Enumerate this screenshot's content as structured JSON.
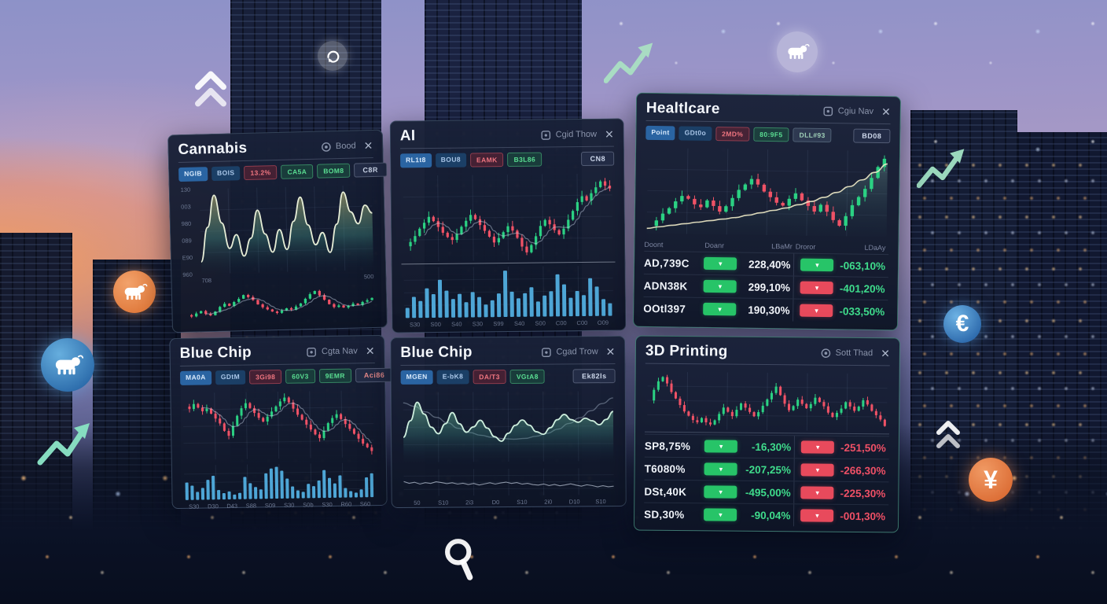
{
  "ui": {
    "close_glyph": "✕",
    "badge_glyph": "▾"
  },
  "icons": {
    "euro": "€",
    "yen": "¥"
  },
  "panels": {
    "cannabis": {
      "title": "Cannabis",
      "header_label": "Bood",
      "corner_button": "C8R",
      "tags": [
        {
          "label": "NGIB",
          "style": "blue"
        },
        {
          "label": "BOIS",
          "style": "blue2"
        },
        {
          "label": "13.2%",
          "style": "red"
        },
        {
          "label": "CA5A",
          "style": "green"
        },
        {
          "label": "BOM8",
          "style": "green"
        }
      ],
      "main_chart": {
        "type": "area",
        "values": [
          12,
          55,
          95,
          60,
          28,
          45,
          18,
          40,
          75,
          45,
          22,
          50,
          25,
          60,
          90,
          55,
          30,
          45,
          20,
          55,
          95,
          70,
          55,
          78,
          68
        ],
        "y_labels": [
          "130",
          "003",
          "980",
          "089",
          "E90",
          "960"
        ],
        "x_labels": [
          "708",
          "500"
        ],
        "fill_top": "rgba(186,176,110,0.60)",
        "fill_mid": "rgba(70,150,135,0.38)",
        "line_color": "#e6edd6"
      },
      "sub_chart": {
        "type": "candles",
        "closes": [
          30,
          28,
          32,
          35,
          31,
          29,
          34,
          40,
          44,
          41,
          46,
          50,
          55,
          52,
          48,
          42,
          38,
          35,
          32,
          30,
          33,
          36,
          34,
          38,
          42,
          48,
          54,
          58,
          52,
          46,
          40,
          36,
          38,
          35,
          37,
          40,
          38,
          42,
          44,
          47
        ],
        "ma": true,
        "grid": false
      }
    },
    "ai": {
      "title": "AI",
      "header_label": "Cgid Thow",
      "corner_button": "CN8",
      "tags": [
        {
          "label": "RL1t8",
          "style": "blue"
        },
        {
          "label": "BOU8",
          "style": "blue2"
        },
        {
          "label": "EAMK",
          "style": "red"
        },
        {
          "label": "B3L86",
          "style": "green"
        }
      ],
      "main_chart": {
        "type": "candles",
        "closes": [
          40,
          43,
          47,
          52,
          56,
          60,
          57,
          53,
          49,
          46,
          44,
          48,
          53,
          57,
          61,
          58,
          54,
          50,
          46,
          42,
          45,
          49,
          53,
          50,
          45,
          39,
          35,
          40,
          46,
          53,
          57,
          54,
          50,
          47,
          51,
          57,
          63,
          69,
          73,
          70,
          75,
          79,
          83,
          80,
          78
        ],
        "ma": true
      },
      "sub_chart": {
        "type": "bars",
        "values": [
          12,
          25,
          20,
          35,
          28,
          45,
          32,
          22,
          28,
          18,
          30,
          24,
          15,
          20,
          28,
          55,
          30,
          22,
          28,
          35,
          18,
          25,
          30,
          50,
          38,
          22,
          30,
          25,
          45,
          35,
          20,
          15
        ],
        "x_labels": [
          "S30",
          "S00",
          "S40",
          "S30",
          "S99",
          "S40",
          "S00",
          "C00",
          "C00",
          "O09"
        ]
      }
    },
    "healthcare": {
      "title": "Healtlcare",
      "header_label": "Cgiu Nav",
      "corner_button": "BD08",
      "tags": [
        {
          "label": "Point",
          "style": "blue"
        },
        {
          "label": "GDt0o",
          "style": "blue2"
        },
        {
          "label": "2MD%",
          "style": "red"
        },
        {
          "label": "80:9F5",
          "style": "green"
        },
        {
          "label": "DLL#93",
          "style": "grey"
        }
      ],
      "main_chart": {
        "type": "candles",
        "closes": [
          30,
          34,
          39,
          43,
          48,
          52,
          50,
          46,
          44,
          49,
          45,
          41,
          45,
          51,
          57,
          61,
          65,
          61,
          56,
          52,
          48,
          46,
          51,
          55,
          50,
          46,
          42,
          47,
          42,
          36,
          32,
          39,
          47,
          53,
          59,
          67,
          75,
          81
        ],
        "trend": [
          6,
          8,
          10,
          12,
          14,
          16,
          18,
          20,
          23,
          26,
          29,
          32,
          36,
          40,
          45,
          51,
          58,
          66,
          75,
          85
        ],
        "trend_color": "rgba(240,235,200,0.9)"
      },
      "table": {
        "headers": [
          "Doont",
          "Doanr",
          "LBaMr",
          "Droror",
          "LDaAy"
        ],
        "rows": [
          {
            "name": "AD,739C",
            "b1": "up",
            "v1": "228,40%",
            "v1_color": "white",
            "b2": "up",
            "v2": "-063,10%",
            "v2_color": "green"
          },
          {
            "name": "ADN38K",
            "b1": "up",
            "v1": "299,10%",
            "v1_color": "white",
            "b2": "down",
            "v2": "-401,20%",
            "v2_color": "green"
          },
          {
            "name": "OOtl397",
            "b1": "up",
            "v1": "190,30%",
            "v1_color": "white",
            "b2": "down",
            "v2": "-033,50%",
            "v2_color": "green"
          }
        ]
      }
    },
    "bluechip_left": {
      "title": "Blue Chip",
      "header_label": "Cgta Nav",
      "corner_button": "Aci86",
      "tags": [
        {
          "label": "MA0A",
          "style": "blue"
        },
        {
          "label": "GDtM",
          "style": "blue2"
        },
        {
          "label": "3Gi98",
          "style": "red"
        },
        {
          "label": "60V3",
          "style": "green"
        },
        {
          "label": "9EMR",
          "style": "green"
        }
      ],
      "main_chart": {
        "type": "candles",
        "closes": [
          60,
          58,
          62,
          59,
          56,
          58,
          54,
          50,
          46,
          40,
          36,
          44,
          52,
          58,
          62,
          58,
          54,
          50,
          47,
          51,
          55,
          59,
          63,
          66,
          62,
          57,
          52,
          48,
          44,
          40,
          36,
          33,
          39,
          45,
          49,
          52,
          48,
          44,
          40,
          36,
          32,
          28,
          25,
          22
        ],
        "ma": true
      },
      "sub_chart": {
        "type": "bars",
        "values": [
          22,
          18,
          10,
          15,
          25,
          30,
          12,
          8,
          10,
          6,
          8,
          28,
          20,
          15,
          12,
          32,
          38,
          40,
          35,
          25,
          15,
          10,
          8,
          18,
          15,
          22,
          35,
          25,
          18,
          28,
          12,
          8,
          6,
          10,
          25,
          30
        ],
        "x_labels": [
          "S30",
          "D30",
          "D43",
          "S88",
          "S09",
          "S30",
          "S0b",
          "S30",
          "R60",
          "S60"
        ]
      }
    },
    "bluechip_mid": {
      "title": "Blue Chip",
      "header_label": "Cgad Trow",
      "corner_button": "Ek82ls",
      "tags": [
        {
          "label": "MGEN",
          "style": "blue"
        },
        {
          "label": "E-bK8",
          "style": "blue2"
        },
        {
          "label": "DA/T3",
          "style": "red"
        },
        {
          "label": "VGtA8",
          "style": "green"
        }
      ],
      "main_chart": {
        "type": "area",
        "values": [
          35,
          60,
          88,
          70,
          50,
          40,
          55,
          72,
          55,
          42,
          50,
          60,
          48,
          35,
          28,
          40,
          52,
          60,
          52,
          42,
          38,
          48,
          60,
          68,
          60,
          56,
          62,
          58,
          52,
          60,
          72
        ],
        "trend": [
          85,
          80,
          72,
          64,
          56,
          48,
          42,
          38,
          35,
          33,
          32,
          33,
          36,
          40,
          46,
          54,
          62,
          72,
          82,
          90
        ],
        "trend_color": "rgba(185,200,220,0.40)",
        "fill_top": "rgba(125,205,160,0.55)",
        "fill_mid": "rgba(60,140,130,0.30)",
        "line_color": "#cdeedd"
      },
      "sub_chart": {
        "type": "line",
        "values": [
          55,
          48,
          52,
          45,
          50,
          47,
          53,
          50,
          46,
          49,
          44,
          47,
          42,
          46,
          40,
          44,
          48,
          43,
          47,
          50,
          45,
          48,
          42,
          45,
          40,
          38,
          42,
          36,
          40,
          35,
          38,
          42,
          37,
          33,
          38,
          35,
          30,
          34,
          30,
          32
        ],
        "x_labels": [
          "50",
          "S10",
          "2i3",
          "D0",
          "S10",
          "2i0",
          "D10",
          "S10"
        ]
      }
    },
    "printing": {
      "title": "3D Printing",
      "header_label": "Sott Thad",
      "main_chart": {
        "type": "candles",
        "closes": [
          50,
          60,
          68,
          72,
          66,
          58,
          52,
          46,
          40,
          36,
          32,
          30,
          34,
          30,
          28,
          32,
          38,
          44,
          40,
          36,
          42,
          48,
          44,
          40,
          36,
          40,
          46,
          52,
          58,
          64,
          56,
          48,
          42,
          46,
          52,
          48,
          44,
          48,
          54,
          50,
          46,
          40,
          36,
          40,
          44,
          50,
          46,
          42,
          46,
          52,
          48,
          42,
          38,
          34,
          28
        ]
      },
      "table": {
        "rows": [
          {
            "name": "SP8,75%",
            "b1": "up",
            "v1": "-16,30%",
            "v1_color": "green",
            "b2": "down",
            "v2": "-251,50%",
            "v2_color": "red"
          },
          {
            "name": "T6080%",
            "b1": "up",
            "v1": "-207,25%",
            "v1_color": "green",
            "b2": "down",
            "v2": "-266,30%",
            "v2_color": "red"
          },
          {
            "name": "DSt,40K",
            "b1": "up",
            "v1": "-495,00%",
            "v1_color": "green",
            "b2": "down",
            "v2": "-225,30%",
            "v2_color": "red"
          },
          {
            "name": "SD,30%",
            "b1": "up",
            "v1": "-90,04%",
            "v1_color": "green",
            "b2": "down",
            "v2": "-001,30%",
            "v2_color": "red"
          }
        ]
      }
    }
  }
}
